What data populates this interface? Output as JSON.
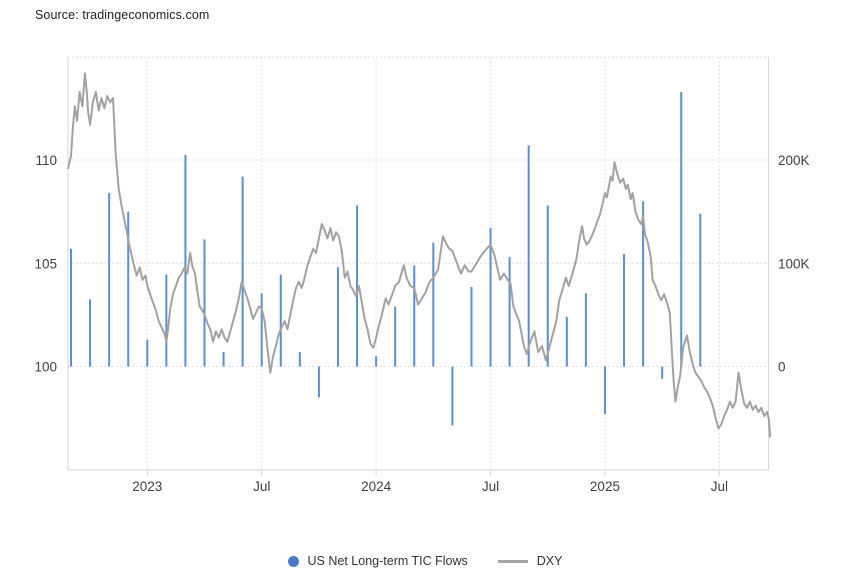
{
  "source_label": "Source: tradingeconomics.com",
  "legend": {
    "items": [
      {
        "label": "US Net Long-term TIC Flows",
        "marker": "circle",
        "color": "#4a7cc5"
      },
      {
        "label": "DXY",
        "marker": "line",
        "color": "#a6a6a6"
      }
    ]
  },
  "chart_data": {
    "type": "mixed",
    "title": "",
    "grid": "dotted",
    "legend_position": "bottom-center",
    "series": [
      {
        "name": "US Net Long-term TIC Flows",
        "type": "bar",
        "axis": "right",
        "unit": "USD millions, shown in thousands (K)",
        "color": "#5d8ece",
        "categories": [
          "Sep 2022",
          "Oct 2022",
          "Nov 2022",
          "Dec 2022",
          "Jan 2023",
          "Feb 2023",
          "Mar 2023",
          "Apr 2023",
          "May 2023",
          "Jun 2023",
          "Jul 2023",
          "Aug 2023",
          "Sep 2023",
          "Oct 2023",
          "Nov 2023",
          "Dec 2023",
          "Jan 2024",
          "Feb 2024",
          "Mar 2024",
          "Apr 2024",
          "May 2024",
          "Jun 2024",
          "Jul 2024",
          "Aug 2024",
          "Sep 2024",
          "Oct 2024",
          "Nov 2024",
          "Dec 2024",
          "Jan 2025",
          "Feb 2025",
          "Mar 2025",
          "Apr 2025",
          "May 2025",
          "Jun 2025"
        ],
        "values": [
          114,
          65,
          168,
          150,
          26,
          89,
          205,
          123,
          14,
          184,
          71,
          89,
          14,
          -30,
          96,
          156,
          10,
          58,
          98,
          120,
          -57,
          77,
          134,
          106,
          214,
          156,
          48,
          71,
          -46,
          109,
          160,
          -12,
          266,
          148
        ]
      },
      {
        "name": "DXY",
        "type": "line",
        "axis": "left",
        "unit": "index",
        "color": "#a2a2a2",
        "points_format": "[months since Sep 1 2022, DXY value]",
        "points": [
          [
            -0.15,
            109.6
          ],
          [
            0,
            110.2
          ],
          [
            0.1,
            111.6
          ],
          [
            0.2,
            112.6
          ],
          [
            0.32,
            111.9
          ],
          [
            0.45,
            113.3
          ],
          [
            0.6,
            112.6
          ],
          [
            0.73,
            114.2
          ],
          [
            0.82,
            113.4
          ],
          [
            0.9,
            112.3
          ],
          [
            1.0,
            111.7
          ],
          [
            1.15,
            112.8
          ],
          [
            1.3,
            113.3
          ],
          [
            1.45,
            112.4
          ],
          [
            1.6,
            113.0
          ],
          [
            1.75,
            112.5
          ],
          [
            1.9,
            113.1
          ],
          [
            2.05,
            112.8
          ],
          [
            2.2,
            113.0
          ],
          [
            2.35,
            110.2
          ],
          [
            2.5,
            108.6
          ],
          [
            2.65,
            107.8
          ],
          [
            2.8,
            107.1
          ],
          [
            2.95,
            106.4
          ],
          [
            3.05,
            105.9
          ],
          [
            3.15,
            105.5
          ],
          [
            3.3,
            104.9
          ],
          [
            3.45,
            104.4
          ],
          [
            3.6,
            104.8
          ],
          [
            3.75,
            104.2
          ],
          [
            3.9,
            104.4
          ],
          [
            4.0,
            103.9
          ],
          [
            4.15,
            103.5
          ],
          [
            4.3,
            103.1
          ],
          [
            4.45,
            102.7
          ],
          [
            4.6,
            102.2
          ],
          [
            4.75,
            101.9
          ],
          [
            4.9,
            101.6
          ],
          [
            5.0,
            101.2
          ],
          [
            5.1,
            101.9
          ],
          [
            5.2,
            102.8
          ],
          [
            5.35,
            103.5
          ],
          [
            5.5,
            103.9
          ],
          [
            5.65,
            104.3
          ],
          [
            5.8,
            104.5
          ],
          [
            5.95,
            104.8
          ],
          [
            6.1,
            104.5
          ],
          [
            6.25,
            105.5
          ],
          [
            6.35,
            104.9
          ],
          [
            6.5,
            104.5
          ],
          [
            6.6,
            103.8
          ],
          [
            6.75,
            102.9
          ],
          [
            6.9,
            102.7
          ],
          [
            7.0,
            102.5
          ],
          [
            7.15,
            102.1
          ],
          [
            7.3,
            101.8
          ],
          [
            7.45,
            101.2
          ],
          [
            7.6,
            101.7
          ],
          [
            7.75,
            101.4
          ],
          [
            7.9,
            101.8
          ],
          [
            8.05,
            101.4
          ],
          [
            8.2,
            101.2
          ],
          [
            8.35,
            101.7
          ],
          [
            8.5,
            102.2
          ],
          [
            8.65,
            102.7
          ],
          [
            8.8,
            103.3
          ],
          [
            8.95,
            104.1
          ],
          [
            9.1,
            103.7
          ],
          [
            9.25,
            103.3
          ],
          [
            9.4,
            102.8
          ],
          [
            9.55,
            102.3
          ],
          [
            9.7,
            102.6
          ],
          [
            9.85,
            102.9
          ],
          [
            10.0,
            102.8
          ],
          [
            10.15,
            102.2
          ],
          [
            10.3,
            100.9
          ],
          [
            10.45,
            99.7
          ],
          [
            10.6,
            100.5
          ],
          [
            10.75,
            101.0
          ],
          [
            10.9,
            101.6
          ],
          [
            11.05,
            101.9
          ],
          [
            11.2,
            102.2
          ],
          [
            11.35,
            101.8
          ],
          [
            11.5,
            102.5
          ],
          [
            11.65,
            103.2
          ],
          [
            11.8,
            103.8
          ],
          [
            11.95,
            104.1
          ],
          [
            12.1,
            103.8
          ],
          [
            12.25,
            104.3
          ],
          [
            12.4,
            104.9
          ],
          [
            12.55,
            105.3
          ],
          [
            12.7,
            105.7
          ],
          [
            12.85,
            105.5
          ],
          [
            13.0,
            106.2
          ],
          [
            13.15,
            106.9
          ],
          [
            13.3,
            106.6
          ],
          [
            13.45,
            106.2
          ],
          [
            13.6,
            106.7
          ],
          [
            13.75,
            106.1
          ],
          [
            13.9,
            106.5
          ],
          [
            14.05,
            106.3
          ],
          [
            14.2,
            105.6
          ],
          [
            14.35,
            104.3
          ],
          [
            14.5,
            104.6
          ],
          [
            14.65,
            103.9
          ],
          [
            14.8,
            103.7
          ],
          [
            14.95,
            103.4
          ],
          [
            15.1,
            103.9
          ],
          [
            15.25,
            103.1
          ],
          [
            15.4,
            102.3
          ],
          [
            15.55,
            101.8
          ],
          [
            15.7,
            101.1
          ],
          [
            15.85,
            100.9
          ],
          [
            16.0,
            101.4
          ],
          [
            16.15,
            102.0
          ],
          [
            16.3,
            102.5
          ],
          [
            16.5,
            103.3
          ],
          [
            16.65,
            103.0
          ],
          [
            16.85,
            103.5
          ],
          [
            17.0,
            103.9
          ],
          [
            17.2,
            104.1
          ],
          [
            17.45,
            104.9
          ],
          [
            17.6,
            104.3
          ],
          [
            17.8,
            103.9
          ],
          [
            18.0,
            103.8
          ],
          [
            18.2,
            103.0
          ],
          [
            18.4,
            103.3
          ],
          [
            18.6,
            103.6
          ],
          [
            18.8,
            104.1
          ],
          [
            19.0,
            104.3
          ],
          [
            19.25,
            104.7
          ],
          [
            19.5,
            106.3
          ],
          [
            19.7,
            105.9
          ],
          [
            19.85,
            105.7
          ],
          [
            20.0,
            105.6
          ],
          [
            20.2,
            105.1
          ],
          [
            20.45,
            104.5
          ],
          [
            20.65,
            104.9
          ],
          [
            20.85,
            104.6
          ],
          [
            21.0,
            104.6
          ],
          [
            21.2,
            104.9
          ],
          [
            21.45,
            105.3
          ],
          [
            21.7,
            105.6
          ],
          [
            21.9,
            105.8
          ],
          [
            22.0,
            105.9
          ],
          [
            22.2,
            105.4
          ],
          [
            22.5,
            104.2
          ],
          [
            22.7,
            104.5
          ],
          [
            22.9,
            104.2
          ],
          [
            23.05,
            104.0
          ],
          [
            23.2,
            102.9
          ],
          [
            23.5,
            102.2
          ],
          [
            23.75,
            101.0
          ],
          [
            23.9,
            100.6
          ],
          [
            24.05,
            101.1
          ],
          [
            24.3,
            101.7
          ],
          [
            24.5,
            100.7
          ],
          [
            24.7,
            101.0
          ],
          [
            24.9,
            100.3
          ],
          [
            25.05,
            100.8
          ],
          [
            25.25,
            101.5
          ],
          [
            25.45,
            102.2
          ],
          [
            25.6,
            103.2
          ],
          [
            25.8,
            103.8
          ],
          [
            25.95,
            104.3
          ],
          [
            26.1,
            103.9
          ],
          [
            26.3,
            104.5
          ],
          [
            26.5,
            105.2
          ],
          [
            26.65,
            106.1
          ],
          [
            26.8,
            106.8
          ],
          [
            26.9,
            106.2
          ],
          [
            27.05,
            105.9
          ],
          [
            27.2,
            106.1
          ],
          [
            27.35,
            106.4
          ],
          [
            27.55,
            106.9
          ],
          [
            27.75,
            107.4
          ],
          [
            27.9,
            108.0
          ],
          [
            28.0,
            108.4
          ],
          [
            28.1,
            108.2
          ],
          [
            28.3,
            109.2
          ],
          [
            28.4,
            109.0
          ],
          [
            28.5,
            109.9
          ],
          [
            28.65,
            109.3
          ],
          [
            28.8,
            108.9
          ],
          [
            28.95,
            109.1
          ],
          [
            29.1,
            108.6
          ],
          [
            29.2,
            108.8
          ],
          [
            29.35,
            108.1
          ],
          [
            29.45,
            108.4
          ],
          [
            29.6,
            107.5
          ],
          [
            29.75,
            107.1
          ],
          [
            29.9,
            106.9
          ],
          [
            30.0,
            107.3
          ],
          [
            30.1,
            106.4
          ],
          [
            30.25,
            106.0
          ],
          [
            30.4,
            105.3
          ],
          [
            30.5,
            104.2
          ],
          [
            30.65,
            103.9
          ],
          [
            30.8,
            103.5
          ],
          [
            30.95,
            103.2
          ],
          [
            31.1,
            103.5
          ],
          [
            31.25,
            103.1
          ],
          [
            31.4,
            102.6
          ],
          [
            31.5,
            100.9
          ],
          [
            31.6,
            99.3
          ],
          [
            31.7,
            98.3
          ],
          [
            31.8,
            98.9
          ],
          [
            31.95,
            99.6
          ],
          [
            32.1,
            100.9
          ],
          [
            32.3,
            101.5
          ],
          [
            32.45,
            100.7
          ],
          [
            32.6,
            100.1
          ],
          [
            32.75,
            99.7
          ],
          [
            32.9,
            99.5
          ],
          [
            33.05,
            99.3
          ],
          [
            33.2,
            99.0
          ],
          [
            33.35,
            98.8
          ],
          [
            33.5,
            98.5
          ],
          [
            33.65,
            98.1
          ],
          [
            33.8,
            97.5
          ],
          [
            33.95,
            97.0
          ],
          [
            34.1,
            97.2
          ],
          [
            34.25,
            97.6
          ],
          [
            34.4,
            97.9
          ],
          [
            34.55,
            98.3
          ],
          [
            34.7,
            98.0
          ],
          [
            34.85,
            98.3
          ],
          [
            35.0,
            99.7
          ],
          [
            35.15,
            98.9
          ],
          [
            35.3,
            98.2
          ],
          [
            35.45,
            98.0
          ],
          [
            35.6,
            98.3
          ],
          [
            35.75,
            97.9
          ],
          [
            35.9,
            98.1
          ],
          [
            36.05,
            97.8
          ],
          [
            36.2,
            98.0
          ],
          [
            36.35,
            97.6
          ],
          [
            36.5,
            97.8
          ],
          [
            36.6,
            97.4
          ],
          [
            36.66,
            96.6
          ]
        ]
      }
    ],
    "left_axis": {
      "label": "DXY",
      "range": [
        95,
        115
      ],
      "ticks": [
        110,
        105,
        100
      ],
      "tick_labels": [
        "110",
        "105",
        "100"
      ]
    },
    "right_axis": {
      "label": "US Net Long-term TIC Flows",
      "range": [
        -100,
        300
      ],
      "ticks": [
        200,
        100,
        0
      ],
      "tick_labels": [
        "200K",
        "100K",
        "0"
      ]
    },
    "x_axis": {
      "start_month": "Sep 2022",
      "ticks": [
        {
          "label": "2023",
          "t": 4
        },
        {
          "label": "Jul",
          "t": 10
        },
        {
          "label": "2024",
          "t": 16
        },
        {
          "label": "Jul",
          "t": 22
        },
        {
          "label": "2025",
          "t": 28
        },
        {
          "label": "Jul",
          "t": 34
        }
      ]
    }
  },
  "style": {
    "grid_color": "#e2e2e2",
    "axis_color": "#d6d6d6",
    "tick_text_color": "#404040",
    "bar_color": "#5d8ece",
    "line_color": "#a2a2a2"
  }
}
